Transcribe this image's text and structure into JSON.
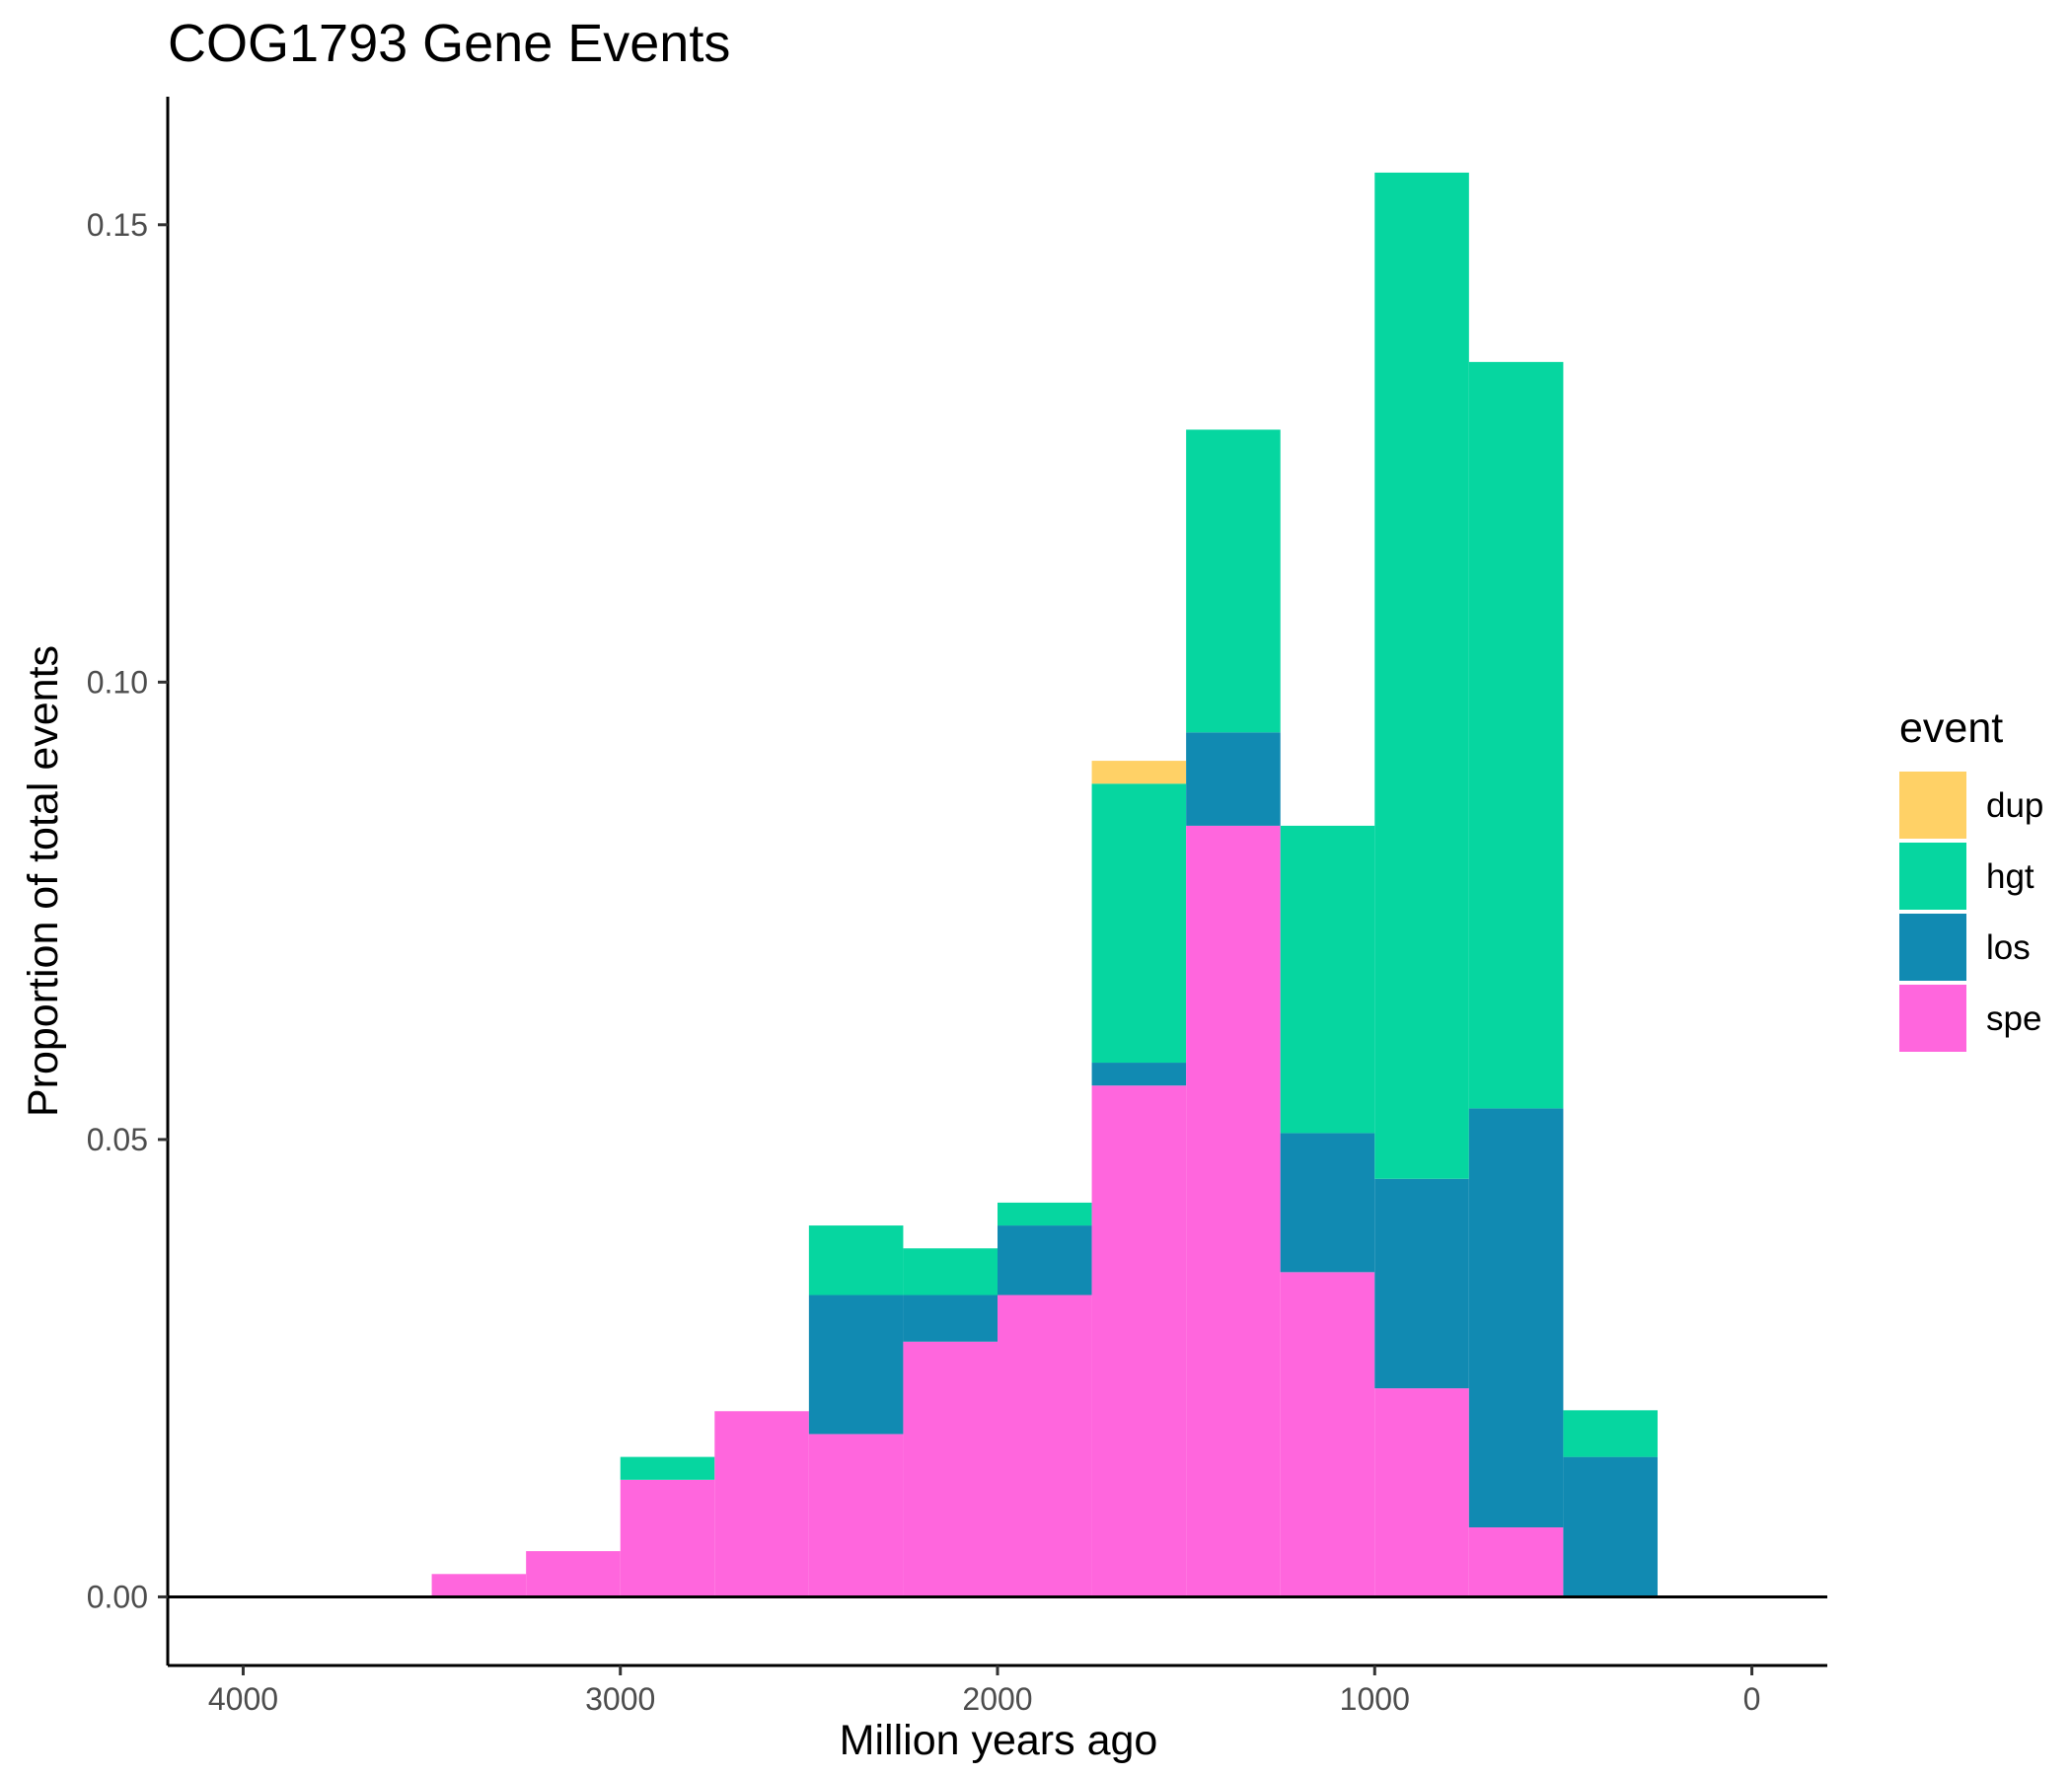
{
  "chart_data": {
    "type": "bar",
    "stacked": true,
    "title": "COG1793 Gene Events",
    "xlabel": "Million years ago",
    "ylabel": "Proportion of total events",
    "x_reversed": true,
    "xlim": [
      4200,
      -200
    ],
    "ylim": [
      -0.0075,
      0.164
    ],
    "x_ticks": [
      4000,
      3000,
      2000,
      1000,
      0
    ],
    "x_tick_labels": [
      "4000",
      "3000",
      "2000",
      "1000",
      "0"
    ],
    "y_ticks": [
      0.0,
      0.05,
      0.1,
      0.15
    ],
    "y_tick_labels": [
      "0.00",
      "0.05",
      "0.10",
      "0.15"
    ],
    "bin_width": 250,
    "bin_centers": [
      3375,
      3125,
      2875,
      2625,
      2375,
      2125,
      1875,
      1625,
      1375,
      1125,
      875,
      625,
      375
    ],
    "legend_title": "event",
    "legend_position": "right",
    "grid": false,
    "hline_at": 0,
    "series": [
      {
        "name": "spe",
        "color": "#FF66DD",
        "values": [
          0.0025,
          0.005,
          0.0128,
          0.0203,
          0.0178,
          0.0279,
          0.033,
          0.0559,
          0.0843,
          0.0355,
          0.0228,
          0.0076,
          0.0
        ]
      },
      {
        "name": "los",
        "color": "#118AB2",
        "values": [
          0.0,
          0.0,
          0.0,
          0.0,
          0.0152,
          0.0051,
          0.0076,
          0.0025,
          0.0102,
          0.0152,
          0.0229,
          0.0458,
          0.0153
        ]
      },
      {
        "name": "hgt",
        "color": "#06D6A0",
        "values": [
          0.0,
          0.0,
          0.0025,
          0.0,
          0.0076,
          0.0051,
          0.0025,
          0.0305,
          0.0331,
          0.0336,
          0.11,
          0.0816,
          0.0051
        ]
      },
      {
        "name": "dup",
        "color": "#FFD166",
        "values": [
          0.0,
          0.0,
          0.0,
          0.0,
          0.0,
          0.0,
          0.0,
          0.0025,
          0.0,
          0.0,
          0.0,
          0.0,
          0.0
        ]
      }
    ]
  }
}
